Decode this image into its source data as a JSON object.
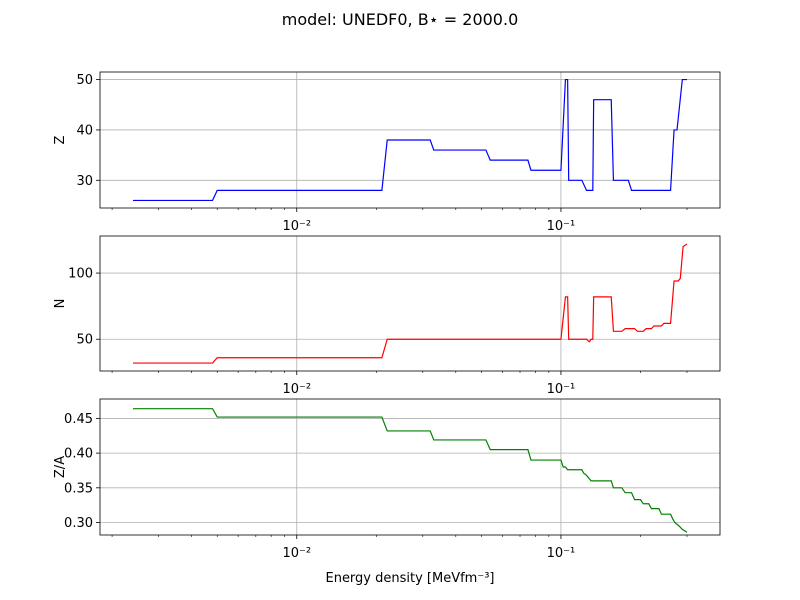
{
  "figure": {
    "title": "model: UNEDF0, B⋆ = 2000.0",
    "xlabel": "Energy density [MeVfm⁻³]"
  },
  "chart_data": [
    {
      "type": "line",
      "ylabel": "Z",
      "xscale": "log",
      "xlim": [
        0.0018,
        0.4
      ],
      "ylim": [
        24.5,
        51.5
      ],
      "yticks": [
        30,
        40,
        50
      ],
      "xticks": [
        0.01,
        0.1
      ],
      "xtick_labels": [
        "10⁻²",
        "10⁻¹"
      ],
      "grid": true,
      "color": "#0000ff",
      "series": [
        {
          "x": [
            0.0024,
            0.0048,
            0.005,
            0.021,
            0.022,
            0.032,
            0.033,
            0.052,
            0.054,
            0.075,
            0.077,
            0.1,
            0.104,
            0.106,
            0.107,
            0.115,
            0.12,
            0.125,
            0.13,
            0.132,
            0.133,
            0.155,
            0.158,
            0.18,
            0.185,
            0.26,
            0.268,
            0.275,
            0.288,
            0.3
          ],
          "y": [
            26,
            26,
            28,
            28,
            38,
            38,
            36,
            36,
            34,
            34,
            32,
            32,
            50,
            50,
            30,
            30,
            30,
            28,
            28,
            28,
            46,
            46,
            30,
            30,
            28,
            28,
            40,
            40,
            50,
            50
          ]
        }
      ]
    },
    {
      "type": "line",
      "ylabel": "N",
      "xscale": "log",
      "xlim": [
        0.0018,
        0.4
      ],
      "ylim": [
        26,
        128
      ],
      "yticks": [
        50,
        100
      ],
      "xticks": [
        0.01,
        0.1
      ],
      "xtick_labels": [
        "10⁻²",
        "10⁻¹"
      ],
      "grid": true,
      "color": "#ff0000",
      "series": [
        {
          "x": [
            0.0024,
            0.0048,
            0.005,
            0.021,
            0.022,
            0.1,
            0.104,
            0.106,
            0.107,
            0.115,
            0.125,
            0.128,
            0.13,
            0.132,
            0.133,
            0.155,
            0.158,
            0.17,
            0.175,
            0.19,
            0.195,
            0.205,
            0.21,
            0.22,
            0.225,
            0.24,
            0.245,
            0.26,
            0.268,
            0.278,
            0.283,
            0.29,
            0.3
          ],
          "y": [
            32,
            32,
            36,
            36,
            50,
            50,
            82,
            82,
            50,
            50,
            50,
            48,
            50,
            50,
            82,
            82,
            56,
            56,
            58,
            58,
            56,
            56,
            58,
            58,
            60,
            60,
            62,
            62,
            94,
            94,
            96,
            120,
            122
          ]
        }
      ]
    },
    {
      "type": "line",
      "ylabel": "Z/A",
      "xscale": "log",
      "xlim": [
        0.0018,
        0.4
      ],
      "ylim": [
        0.282,
        0.478
      ],
      "yticks": [
        0.3,
        0.35,
        0.4,
        0.45
      ],
      "ytick_labels": [
        "0.30",
        "0.35",
        "0.40",
        "0.45"
      ],
      "xticks": [
        0.01,
        0.1
      ],
      "xtick_labels": [
        "10⁻²",
        "10⁻¹"
      ],
      "grid": true,
      "color": "#008000",
      "series": [
        {
          "x": [
            0.0024,
            0.0048,
            0.005,
            0.021,
            0.022,
            0.032,
            0.033,
            0.052,
            0.054,
            0.075,
            0.077,
            0.1,
            0.102,
            0.104,
            0.106,
            0.107,
            0.12,
            0.122,
            0.125,
            0.13,
            0.132,
            0.155,
            0.158,
            0.17,
            0.175,
            0.185,
            0.19,
            0.2,
            0.205,
            0.215,
            0.22,
            0.235,
            0.24,
            0.26,
            0.265,
            0.27,
            0.28,
            0.288,
            0.3
          ],
          "y": [
            0.464,
            0.464,
            0.452,
            0.452,
            0.432,
            0.432,
            0.419,
            0.419,
            0.405,
            0.405,
            0.39,
            0.39,
            0.38,
            0.38,
            0.376,
            0.376,
            0.376,
            0.371,
            0.368,
            0.36,
            0.36,
            0.36,
            0.35,
            0.35,
            0.343,
            0.343,
            0.333,
            0.333,
            0.327,
            0.327,
            0.32,
            0.32,
            0.312,
            0.312,
            0.305,
            0.3,
            0.295,
            0.29,
            0.286
          ]
        }
      ]
    }
  ]
}
